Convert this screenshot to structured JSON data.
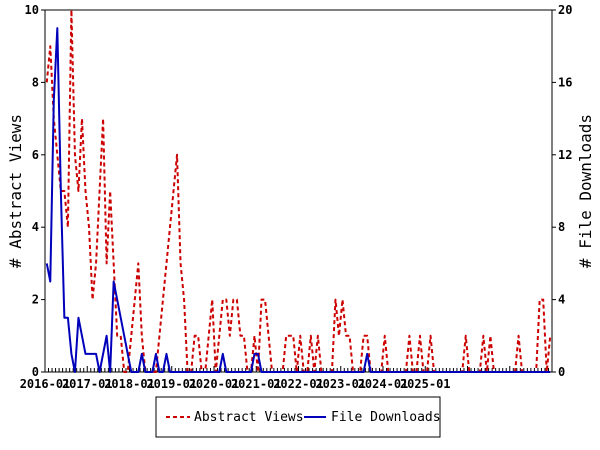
{
  "chart_data": {
    "type": "line",
    "y_axis_left": {
      "label": "# Abstract Views",
      "range": [
        0,
        10
      ],
      "ticks": [
        "0",
        "2",
        "4",
        "6",
        "8",
        "10"
      ]
    },
    "y_axis_right": {
      "label": "# File Downloads",
      "range": [
        0,
        20
      ],
      "ticks": [
        "0",
        "4",
        "8",
        "12",
        "16",
        "20"
      ]
    },
    "x_axis": {
      "start": "2016-01",
      "end": "2025-12",
      "tick_labels": [
        "2016-01",
        "2017-01",
        "2018-01",
        "2019-01",
        "2020-01",
        "2021-01",
        "2022-01",
        "2023-01",
        "2024-01",
        "2025-01"
      ]
    },
    "legend": {
      "position": "bottom"
    },
    "series": [
      {
        "name": "Abstract Views",
        "axis": "left",
        "color": "#cc0000",
        "style": "dashed",
        "values": [
          8,
          9,
          7,
          6,
          5,
          5,
          4,
          10,
          6,
          5,
          7,
          5,
          4,
          2,
          3,
          5,
          7,
          3,
          5,
          3,
          1,
          1,
          0,
          0,
          1,
          2,
          3,
          1,
          0,
          0,
          0,
          0,
          1,
          2,
          3,
          4,
          5,
          6,
          3,
          2,
          0,
          0,
          1,
          1,
          0,
          0,
          1,
          2,
          0,
          1,
          2,
          2,
          1,
          2,
          2,
          1,
          1,
          0,
          0,
          1,
          0,
          2,
          2,
          1,
          0,
          0,
          0,
          0,
          1,
          1,
          1,
          0,
          1,
          0,
          0,
          1,
          0,
          1,
          0,
          0,
          0,
          0,
          2,
          1,
          2,
          1,
          1,
          0,
          0,
          0,
          1,
          1,
          0,
          0,
          0,
          0,
          1,
          0,
          0,
          0,
          0,
          0,
          0,
          1,
          0,
          0,
          1,
          0,
          0,
          1,
          0,
          0,
          0,
          0,
          0,
          0,
          0,
          0,
          0,
          1,
          0,
          0,
          0,
          0,
          1,
          0,
          1,
          0,
          0,
          0,
          0,
          0,
          0,
          0,
          1,
          0,
          0,
          0,
          0,
          0,
          2,
          2,
          0,
          1
        ]
      },
      {
        "name": "File Downloads",
        "axis": "right",
        "color": "#0000bb",
        "style": "solid",
        "values": [
          6,
          5,
          15,
          19,
          10,
          3,
          3,
          1,
          0,
          3,
          2,
          1,
          1,
          1,
          1,
          0,
          1,
          2,
          0,
          5,
          4,
          3,
          2,
          1,
          0,
          0,
          0,
          1,
          0,
          0,
          0,
          1,
          0,
          0,
          1,
          0,
          0,
          0,
          0,
          0,
          0,
          0,
          0,
          0,
          0,
          0,
          0,
          0,
          0,
          0,
          1,
          0,
          0,
          0,
          0,
          0,
          0,
          0,
          0,
          1,
          1,
          0,
          0,
          0,
          0,
          0,
          0,
          0,
          0,
          0,
          0,
          0,
          0,
          0,
          0,
          0,
          0,
          0,
          0,
          0,
          0,
          0,
          0,
          0,
          0,
          0,
          0,
          0,
          0,
          0,
          0,
          1,
          0,
          0,
          0,
          0,
          0,
          0,
          0,
          0,
          0,
          0,
          0,
          0,
          0,
          0,
          0,
          0,
          0,
          0,
          0,
          0,
          0,
          0,
          0,
          0,
          0,
          0,
          0,
          0,
          0,
          0,
          0,
          0,
          0,
          0,
          0,
          0,
          0,
          0,
          0,
          0,
          0,
          0,
          0,
          0,
          0,
          0,
          0,
          0,
          0,
          0,
          0,
          0
        ]
      }
    ]
  }
}
